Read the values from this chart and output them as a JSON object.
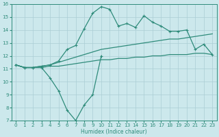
{
  "xlabel": "Humidex (Indice chaleur)",
  "color": "#2e8b7a",
  "bg_color": "#cce8ec",
  "grid_color": "#aacdd4",
  "ylim": [
    7,
    16
  ],
  "xlim": [
    -0.5,
    23.5
  ],
  "line_peak_x": [
    0,
    1,
    2,
    3,
    4,
    5,
    6,
    7,
    8,
    9,
    10,
    11,
    12,
    13,
    14,
    15,
    16,
    17,
    18,
    19,
    20,
    21,
    22,
    23
  ],
  "line_peak_y": [
    11.3,
    11.1,
    11.1,
    11.2,
    11.3,
    11.6,
    12.5,
    12.8,
    14.1,
    15.3,
    15.8,
    15.6,
    14.3,
    14.5,
    14.2,
    15.1,
    14.6,
    14.3,
    13.9,
    13.9,
    14.0,
    12.5,
    12.9,
    12.1
  ],
  "line_dip_x": [
    0,
    1,
    2,
    3,
    4,
    5,
    6,
    7,
    8,
    9,
    10
  ],
  "line_dip_y": [
    11.3,
    11.1,
    11.1,
    11.1,
    10.3,
    9.3,
    7.8,
    7.0,
    8.2,
    9.0,
    12.0
  ],
  "line_upper_x": [
    0,
    1,
    2,
    3,
    4,
    5,
    6,
    7,
    8,
    9,
    10,
    11,
    12,
    13,
    14,
    15,
    16,
    17,
    18,
    19,
    20,
    21,
    22,
    23
  ],
  "line_upper_y": [
    11.3,
    11.1,
    11.1,
    11.2,
    11.3,
    11.5,
    11.7,
    11.9,
    12.1,
    12.3,
    12.5,
    12.6,
    12.7,
    12.8,
    12.9,
    13.0,
    13.1,
    13.2,
    13.3,
    13.3,
    13.4,
    13.5,
    13.6,
    13.7
  ],
  "line_lower_x": [
    0,
    1,
    2,
    3,
    4,
    5,
    6,
    7,
    8,
    9,
    10,
    11,
    12,
    13,
    14,
    15,
    16,
    17,
    18,
    19,
    20,
    21,
    22,
    23
  ],
  "line_lower_y": [
    11.3,
    11.1,
    11.1,
    11.1,
    11.2,
    11.2,
    11.3,
    11.4,
    11.5,
    11.6,
    11.7,
    11.7,
    11.8,
    11.8,
    11.9,
    11.9,
    12.0,
    12.0,
    12.1,
    12.1,
    12.1,
    12.2,
    12.2,
    12.1
  ]
}
